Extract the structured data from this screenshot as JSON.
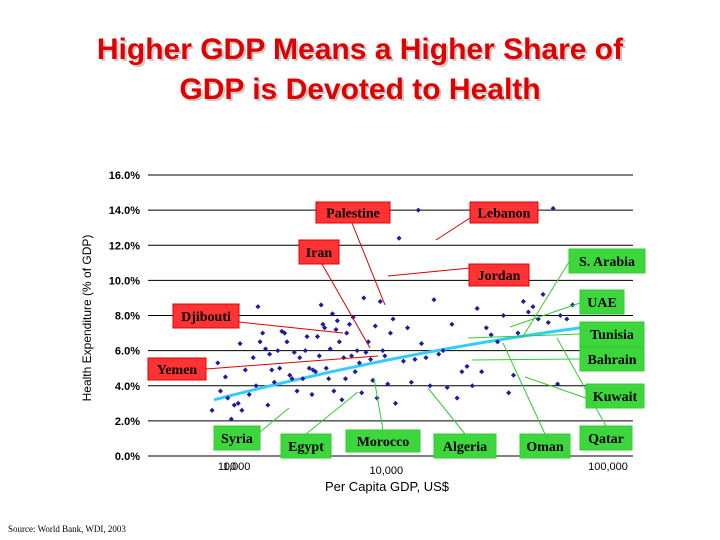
{
  "slide": {
    "title_line1": "Higher GDP Means a Higher Share of",
    "title_line2": "GDP is Devoted to Health",
    "source": "Source: World Bank, WDI, 2003"
  },
  "colors": {
    "title": "#e00000",
    "points": "#1c1c9c",
    "trend": "#33ccff",
    "red_label_border": "#e00000",
    "red_label_fill": "#ff3333",
    "green_label_border": "#33cc33",
    "green_label_fill": "#3dd63d",
    "red_leader": "#e00000",
    "green_leader": "#33cc33"
  },
  "chart_data": {
    "type": "scatter",
    "title": "",
    "xlabel": "Per Capita GDP, US$",
    "ylabel": "Health Expenditure (% of GDP)",
    "xscale": "log",
    "xlim": [
      100,
      100000
    ],
    "ylim": [
      0,
      16
    ],
    "y_ticks": [
      "0.0%",
      "2.0%",
      "4.0%",
      "6.0%",
      "8.0%",
      "10.0%",
      "12.0%",
      "14.0%",
      "16.0%"
    ],
    "x_ticks": [
      "100",
      "1,000",
      "10,000",
      "100,000"
    ],
    "grid": "horizontal",
    "trendline": {
      "x": [
        95,
        75000
      ],
      "y": [
        3.2,
        7.4
      ]
    },
    "points": [
      [
        95,
        2.6
      ],
      [
        105,
        5.3
      ],
      [
        110,
        3.7
      ],
      [
        120,
        4.5
      ],
      [
        125,
        3.3
      ],
      [
        133,
        2.1
      ],
      [
        140,
        2.9
      ],
      [
        150,
        3.0
      ],
      [
        155,
        6.4
      ],
      [
        160,
        2.6
      ],
      [
        170,
        4.9
      ],
      [
        175,
        1.5
      ],
      [
        182,
        3.5
      ],
      [
        195,
        5.6
      ],
      [
        205,
        4.0
      ],
      [
        212,
        8.5
      ],
      [
        220,
        6.5
      ],
      [
        230,
        7.0
      ],
      [
        242,
        6.1
      ],
      [
        252,
        2.9
      ],
      [
        260,
        5.8
      ],
      [
        270,
        4.9
      ],
      [
        282,
        4.2
      ],
      [
        300,
        6.0
      ],
      [
        310,
        5.0
      ],
      [
        322,
        7.1
      ],
      [
        338,
        7.0
      ],
      [
        352,
        6.5
      ],
      [
        370,
        4.6
      ],
      [
        385,
        4.4
      ],
      [
        400,
        5.9
      ],
      [
        420,
        3.7
      ],
      [
        440,
        5.6
      ],
      [
        465,
        4.4
      ],
      [
        485,
        6.0
      ],
      [
        500,
        6.8
      ],
      [
        520,
        5.0
      ],
      [
        545,
        3.5
      ],
      [
        555,
        4.9
      ],
      [
        580,
        4.8
      ],
      [
        600,
        6.8
      ],
      [
        620,
        5.7
      ],
      [
        640,
        8.6
      ],
      [
        660,
        7.5
      ],
      [
        680,
        7.3
      ],
      [
        700,
        5.0
      ],
      [
        730,
        4.4
      ],
      [
        750,
        6.1
      ],
      [
        780,
        8.1
      ],
      [
        800,
        3.7
      ],
      [
        830,
        7.2
      ],
      [
        850,
        7.7
      ],
      [
        880,
        6.5
      ],
      [
        920,
        3.2
      ],
      [
        950,
        5.6
      ],
      [
        980,
        4.4
      ],
      [
        1000,
        7.0
      ],
      [
        1050,
        7.5
      ],
      [
        1090,
        5.7
      ],
      [
        1120,
        7.9
      ],
      [
        1160,
        4.8
      ],
      [
        1200,
        6.0
      ],
      [
        1250,
        5.3
      ],
      [
        1300,
        3.6
      ],
      [
        1350,
        9.0
      ],
      [
        1400,
        5.9
      ],
      [
        1460,
        6.5
      ],
      [
        1520,
        5.5
      ],
      [
        1580,
        4.3
      ],
      [
        1650,
        7.4
      ],
      [
        1700,
        3.3
      ],
      [
        1800,
        8.8
      ],
      [
        1880,
        6.0
      ],
      [
        1950,
        5.7
      ],
      [
        2050,
        4.1
      ],
      [
        2150,
        7.0
      ],
      [
        2250,
        7.8
      ],
      [
        2350,
        3.0
      ],
      [
        2500,
        12.4
      ],
      [
        2700,
        5.4
      ],
      [
        2900,
        7.3
      ],
      [
        3100,
        4.2
      ],
      [
        3300,
        5.5
      ],
      [
        3500,
        14.0
      ],
      [
        3700,
        6.4
      ],
      [
        4000,
        5.6
      ],
      [
        4300,
        4.0
      ],
      [
        4600,
        8.9
      ],
      [
        5000,
        5.8
      ],
      [
        5400,
        6.0
      ],
      [
        5800,
        3.9
      ],
      [
        6300,
        7.5
      ],
      [
        6900,
        3.3
      ],
      [
        7500,
        4.8
      ],
      [
        8200,
        5.1
      ],
      [
        9000,
        4.0
      ],
      [
        9800,
        8.4
      ],
      [
        10600,
        4.8
      ],
      [
        11500,
        7.3
      ],
      [
        12500,
        6.9
      ],
      [
        14000,
        6.5
      ],
      [
        15500,
        8.0
      ],
      [
        17000,
        3.6
      ],
      [
        18500,
        4.6
      ],
      [
        20000,
        7.0
      ],
      [
        22000,
        8.8
      ],
      [
        24000,
        8.2
      ],
      [
        26000,
        8.5
      ],
      [
        28500,
        7.8
      ],
      [
        31000,
        9.2
      ],
      [
        34000,
        7.6
      ],
      [
        37000,
        14.1
      ],
      [
        40000,
        4.1
      ],
      [
        42000,
        8.0
      ],
      [
        47000,
        7.8
      ],
      [
        52000,
        8.6
      ]
    ],
    "labels": [
      {
        "text": "Palestine",
        "style": "red"
      },
      {
        "text": "Lebanon",
        "style": "red"
      },
      {
        "text": "Iran",
        "style": "red"
      },
      {
        "text": "Jordan",
        "style": "red"
      },
      {
        "text": "Djibouti",
        "style": "red"
      },
      {
        "text": "Yemen",
        "style": "red"
      },
      {
        "text": "S. Arabia",
        "style": "green"
      },
      {
        "text": "UAE",
        "style": "green"
      },
      {
        "text": "Tunisia",
        "style": "green"
      },
      {
        "text": "Bahrain",
        "style": "green"
      },
      {
        "text": "Kuwait",
        "style": "green"
      },
      {
        "text": "Syria",
        "style": "green"
      },
      {
        "text": "Egypt",
        "style": "green"
      },
      {
        "text": "Morocco",
        "style": "green"
      },
      {
        "text": "Algeria",
        "style": "green"
      },
      {
        "text": "Oman",
        "style": "green"
      },
      {
        "text": "Qatar",
        "style": "green"
      }
    ]
  }
}
